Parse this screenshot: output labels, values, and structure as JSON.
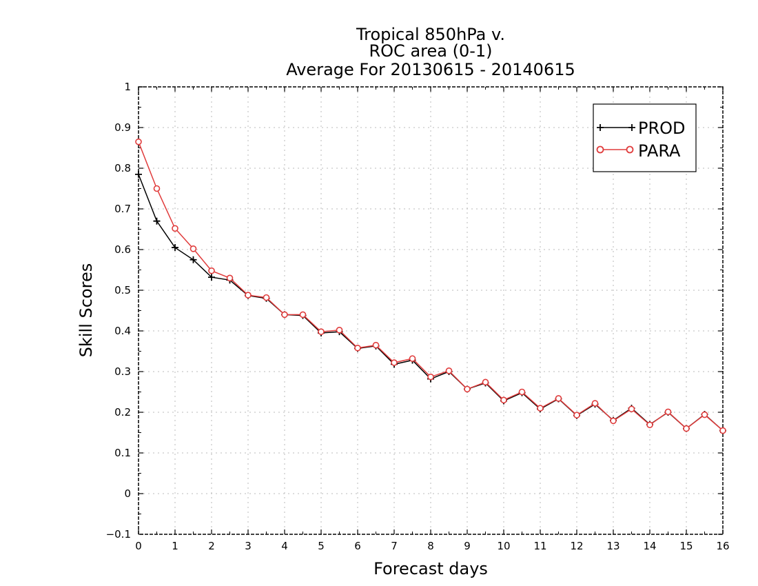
{
  "chart_data": {
    "type": "line",
    "title": [
      "Tropical 850hPa v.",
      "ROC area (0-1)",
      "Average For 20130615 - 20140615"
    ],
    "xlabel": "Forecast days",
    "ylabel": "Skill Scores",
    "xlim": [
      0,
      16
    ],
    "ylim": [
      -0.1,
      1
    ],
    "x_ticks": [
      0,
      1,
      2,
      3,
      4,
      5,
      6,
      7,
      8,
      9,
      10,
      11,
      12,
      13,
      14,
      15,
      16
    ],
    "y_ticks": [
      -0.1,
      0,
      0.1,
      0.2,
      0.3,
      0.4,
      0.5,
      0.6,
      0.7,
      0.8,
      0.9,
      1
    ],
    "x_tick_labels": [
      "0",
      "1",
      "2",
      "3",
      "4",
      "5",
      "6",
      "7",
      "8",
      "9",
      "10",
      "11",
      "12",
      "13",
      "14",
      "15",
      "16"
    ],
    "y_tick_labels": [
      "−0.1",
      "0",
      "0.1",
      "0.2",
      "0.3",
      "0.4",
      "0.5",
      "0.6",
      "0.7",
      "0.8",
      "0.9",
      "1"
    ],
    "grid": true,
    "legend_position": "top-right",
    "x": [
      0,
      0.5,
      1,
      1.5,
      2,
      2.5,
      3,
      3.5,
      4,
      4.5,
      5,
      5.5,
      6,
      6.5,
      7,
      7.5,
      8,
      8.5,
      9,
      9.5,
      10,
      10.5,
      11,
      11.5,
      12,
      12.5,
      13,
      13.5,
      14,
      14.5,
      15,
      15.5,
      16
    ],
    "series": [
      {
        "name": "PROD",
        "color": "#000000",
        "marker": "plus",
        "values": [
          0.785,
          0.67,
          0.605,
          0.575,
          0.532,
          0.525,
          0.487,
          0.48,
          0.44,
          0.438,
          0.395,
          0.398,
          0.357,
          0.363,
          0.318,
          0.328,
          0.282,
          0.3,
          0.257,
          0.272,
          0.228,
          0.248,
          0.208,
          0.233,
          0.192,
          0.22,
          0.18,
          0.21,
          0.17,
          0.2,
          0.16,
          0.195,
          0.155
        ]
      },
      {
        "name": "PARA",
        "color": "#e03c3c",
        "marker": "circle",
        "values": [
          0.865,
          0.75,
          0.652,
          0.602,
          0.548,
          0.53,
          0.488,
          0.482,
          0.44,
          0.44,
          0.398,
          0.402,
          0.358,
          0.365,
          0.322,
          0.332,
          0.287,
          0.302,
          0.257,
          0.274,
          0.23,
          0.25,
          0.21,
          0.234,
          0.193,
          0.222,
          0.179,
          0.208,
          0.169,
          0.201,
          0.16,
          0.194,
          0.155
        ]
      }
    ]
  }
}
